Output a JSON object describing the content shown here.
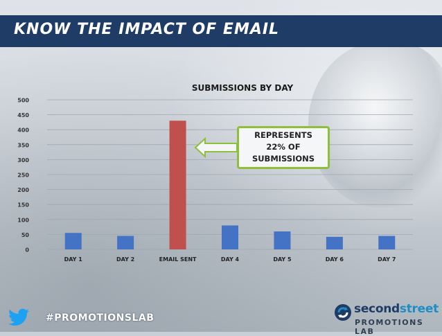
{
  "header": {
    "title": "Know the Impact of Email"
  },
  "callout": {
    "line1": "Represents",
    "line2": "22% of",
    "line3": "Submissions"
  },
  "footer": {
    "hashtag": "#PromotionsLab",
    "twitter_icon": "twitter-bird-icon"
  },
  "logo": {
    "name_part1": "second",
    "name_part2": "street",
    "subtitle": "PROMOTIONS LAB",
    "icon": "circular-arrows-icon"
  },
  "colors": {
    "header_bg": "#1f3c67",
    "bar_default": "#4472c4",
    "bar_highlight": "#c0504d",
    "callout_border": "#8dbf3a",
    "logo_accent": "#1f8dc4"
  },
  "chart_data": {
    "type": "bar",
    "title": "Submissions by Day",
    "xlabel": "",
    "ylabel": "",
    "categories": [
      "Day 1",
      "Day 2",
      "Email Sent",
      "Day 4",
      "Day 5",
      "Day 6",
      "Day 7"
    ],
    "values": [
      55,
      45,
      430,
      80,
      60,
      42,
      45
    ],
    "highlight_category": "Email Sent",
    "ylim": [
      0,
      500
    ],
    "yticks": [
      0,
      50,
      100,
      150,
      200,
      250,
      300,
      350,
      400,
      450,
      500
    ],
    "grid": true,
    "legend": "none"
  }
}
